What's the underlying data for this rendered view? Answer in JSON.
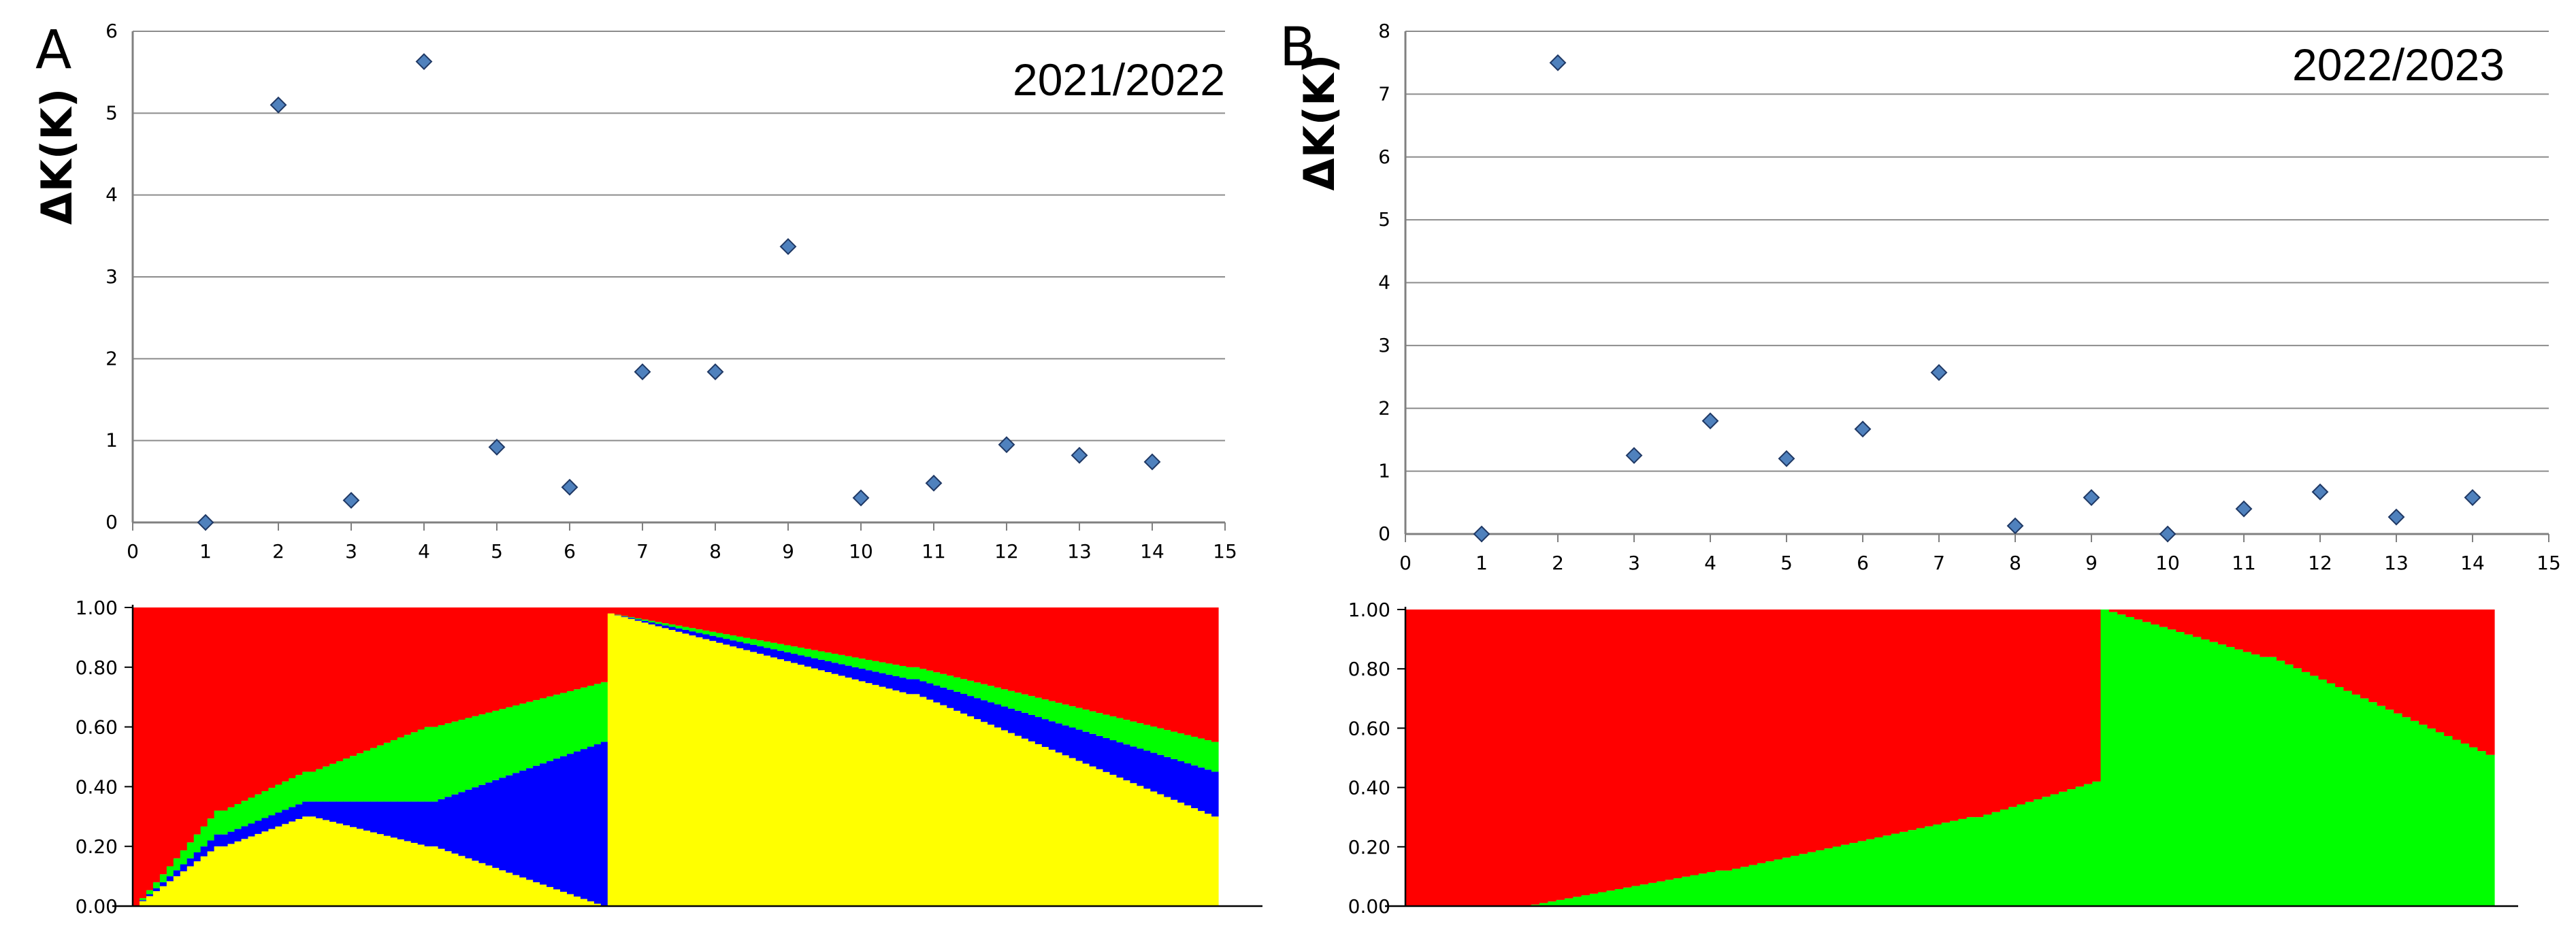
{
  "chart_data": [
    {
      "panel": "A",
      "type": "scatter",
      "inset_text": "2021/2022",
      "ylabel": "ΔK(K)",
      "xlim": [
        0,
        15
      ],
      "ylim": [
        0,
        6
      ],
      "xticks": [
        0,
        1,
        2,
        3,
        4,
        5,
        6,
        7,
        8,
        9,
        10,
        11,
        12,
        13,
        14,
        15
      ],
      "yticks": [
        0,
        1,
        2,
        3,
        4,
        5,
        6
      ],
      "grid": "horizontal",
      "marker": {
        "shape": "diamond",
        "color": "#4F81BD",
        "edge": "#1F3864"
      },
      "points": [
        {
          "x": 1,
          "y": 0.0
        },
        {
          "x": 2,
          "y": 5.1
        },
        {
          "x": 3,
          "y": 0.27
        },
        {
          "x": 4,
          "y": 5.63
        },
        {
          "x": 5,
          "y": 0.92
        },
        {
          "x": 6,
          "y": 0.43
        },
        {
          "x": 7,
          "y": 1.84
        },
        {
          "x": 8,
          "y": 1.84
        },
        {
          "x": 9,
          "y": 3.37
        },
        {
          "x": 10,
          "y": 0.3
        },
        {
          "x": 11,
          "y": 0.48
        },
        {
          "x": 12,
          "y": 0.95
        },
        {
          "x": 13,
          "y": 0.82
        },
        {
          "x": 14,
          "y": 0.74
        }
      ]
    },
    {
      "panel": "B",
      "type": "scatter",
      "inset_text": "2022/2023",
      "ylabel": "ΔK(K)",
      "xlim": [
        0,
        15
      ],
      "ylim": [
        0,
        8
      ],
      "xticks": [
        0,
        1,
        2,
        3,
        4,
        5,
        6,
        7,
        8,
        9,
        10,
        11,
        12,
        13,
        14,
        15
      ],
      "yticks": [
        0,
        1,
        2,
        3,
        4,
        5,
        6,
        7,
        8
      ],
      "grid": "horizontal",
      "marker": {
        "shape": "diamond",
        "color": "#4F81BD",
        "edge": "#1F3864"
      },
      "points": [
        {
          "x": 1,
          "y": 0.0
        },
        {
          "x": 2,
          "y": 7.5
        },
        {
          "x": 3,
          "y": 1.25
        },
        {
          "x": 4,
          "y": 1.8
        },
        {
          "x": 5,
          "y": 1.2
        },
        {
          "x": 6,
          "y": 1.67
        },
        {
          "x": 7,
          "y": 2.57
        },
        {
          "x": 8,
          "y": 0.13
        },
        {
          "x": 9,
          "y": 0.58
        },
        {
          "x": 10,
          "y": 0.0
        },
        {
          "x": 11,
          "y": 0.4
        },
        {
          "x": 12,
          "y": 0.67
        },
        {
          "x": 13,
          "y": 0.27
        },
        {
          "x": 14,
          "y": 0.58
        }
      ]
    },
    {
      "panel": "A-structure",
      "type": "bar",
      "stacked": true,
      "orientation": "vertical",
      "ylim": [
        0,
        1
      ],
      "yticks": [
        "0.00",
        "0.20",
        "0.40",
        "0.60",
        "0.80",
        "1.00"
      ],
      "colors": {
        "yellow": "#FFFF00",
        "blue": "#0000FF",
        "green": "#00FF00",
        "red": "#FF0000"
      },
      "stack_order": [
        "yellow",
        "blue",
        "green",
        "red"
      ],
      "segments": [
        {
          "n": 13,
          "yellow": [
            0.0,
            0.2
          ],
          "blue": [
            0.0,
            0.04
          ],
          "green": [
            0.0,
            0.08
          ],
          "note": "red-dominated ramp"
        },
        {
          "n": 13,
          "yellow": [
            0.2,
            0.3
          ],
          "blue": [
            0.04,
            0.05
          ],
          "green": [
            0.08,
            0.1
          ]
        },
        {
          "n": 18,
          "yellow": [
            0.3,
            0.2
          ],
          "blue": [
            0.05,
            0.15
          ],
          "green": [
            0.1,
            0.25
          ]
        },
        {
          "n": 26,
          "yellow": [
            0.2,
            0.0
          ],
          "blue": [
            0.15,
            0.55
          ],
          "green": [
            0.25,
            0.2
          ]
        },
        {
          "n": 45,
          "yellow": [
            0.98,
            0.71
          ],
          "blue": [
            0.0,
            0.05
          ],
          "green": [
            0.0,
            0.04
          ]
        },
        {
          "n": 45,
          "yellow": [
            0.71,
            0.3
          ],
          "blue": [
            0.05,
            0.15
          ],
          "green": [
            0.04,
            0.1
          ]
        }
      ]
    },
    {
      "panel": "B-structure",
      "type": "bar",
      "stacked": true,
      "orientation": "vertical",
      "ylim": [
        0,
        1
      ],
      "yticks": [
        "0.00",
        "0.20",
        "0.40",
        "0.60",
        "0.80",
        "1.00"
      ],
      "colors": {
        "green": "#00FF00",
        "red": "#FF0000"
      },
      "stack_order": [
        "green",
        "red"
      ],
      "segments": [
        {
          "n": 14,
          "green": [
            0.0,
            0.0
          ]
        },
        {
          "n": 24,
          "green": [
            0.0,
            0.12
          ]
        },
        {
          "n": 30,
          "green": [
            0.12,
            0.3
          ]
        },
        {
          "n": 15,
          "green": [
            0.3,
            0.42
          ]
        },
        {
          "n": 20,
          "green": [
            1.0,
            0.84
          ]
        },
        {
          "n": 27,
          "green": [
            0.84,
            0.51
          ]
        }
      ]
    }
  ]
}
